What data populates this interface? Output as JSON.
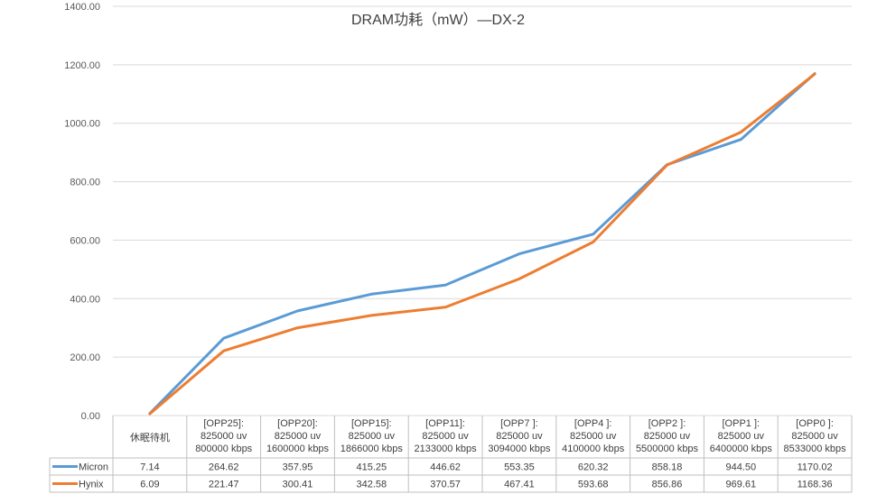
{
  "chart_data": {
    "type": "line",
    "title": "DRAM功耗（mW）—DX-2",
    "xlabel": "",
    "ylabel": "",
    "ylim": [
      0,
      1400
    ],
    "yticks": [
      "0.00",
      "200.00",
      "400.00",
      "600.00",
      "800.00",
      "1000.00",
      "1200.00",
      "1400.00"
    ],
    "grid": true,
    "legend": "left, in data table",
    "categories": [
      "休眠待机",
      "[OPP25]: 825000 uv 800000 kbps",
      "[OPP20]: 825000 uv 1600000 kbps",
      "[OPP15]: 825000 uv 1866000 kbps",
      "[OPP11]: 825000 uv 2133000 kbps",
      "[OPP7 ]: 825000 uv 3094000 kbps",
      "[OPP4 ]: 825000 uv 4100000 kbps",
      "[OPP2 ]: 825000 uv 5500000 kbps",
      "[OPP1 ]: 825000 uv 6400000 kbps",
      "[OPP0 ]: 825000 uv 8533000 kbps"
    ],
    "category_lines": [
      [
        "休眠待机"
      ],
      [
        "[OPP25]:",
        "825000    uv",
        "800000 kbps"
      ],
      [
        "[OPP20]:",
        "825000    uv",
        "1600000  kbps"
      ],
      [
        "[OPP15]:",
        "825000    uv",
        "1866000  kbps"
      ],
      [
        "[OPP11]:",
        "825000    uv",
        "2133000  kbps"
      ],
      [
        "[OPP7 ]:",
        "825000    uv",
        "3094000  kbps"
      ],
      [
        "[OPP4 ]:",
        "825000    uv",
        "4100000  kbps"
      ],
      [
        "[OPP2 ]:",
        "825000    uv",
        "5500000  kbps"
      ],
      [
        "[OPP1 ]:",
        "825000    uv",
        "6400000  kbps"
      ],
      [
        "[OPP0 ]:",
        "825000    uv",
        "8533000  kbps"
      ]
    ],
    "series": [
      {
        "name": "Micron",
        "color": "#5b9bd5",
        "values": [
          7.14,
          264.62,
          357.95,
          415.25,
          446.62,
          553.35,
          620.32,
          858.18,
          944.5,
          1170.02
        ],
        "labels": [
          "7.14",
          "264.62",
          "357.95",
          "415.25",
          "446.62",
          "553.35",
          "620.32",
          "858.18",
          "944.50",
          "1170.02"
        ]
      },
      {
        "name": "Hynix",
        "color": "#ed7d31",
        "values": [
          6.09,
          221.47,
          300.41,
          342.58,
          370.57,
          467.41,
          593.68,
          856.86,
          969.61,
          1168.36
        ],
        "labels": [
          "6.09",
          "221.47",
          "300.41",
          "342.58",
          "370.57",
          "467.41",
          "593.68",
          "856.86",
          "969.61",
          "1168.36"
        ]
      }
    ]
  }
}
